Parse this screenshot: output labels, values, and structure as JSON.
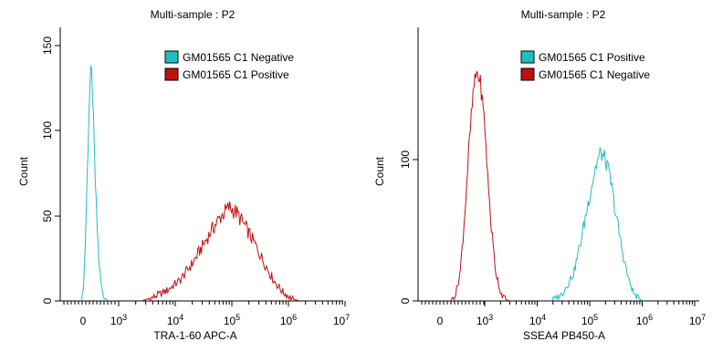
{
  "chart_data": [
    {
      "type": "line",
      "title": "Multi-sample : P2",
      "xlabel": "TRA-1-60 APC-A",
      "ylabel": "Count",
      "ylim": [
        0,
        160
      ],
      "y_ticks": [
        "0",
        "50",
        "100",
        "150"
      ],
      "x_ticks": [
        {
          "base": "0",
          "exp": ""
        },
        {
          "base": "10",
          "exp": "3"
        },
        {
          "base": "10",
          "exp": "4"
        },
        {
          "base": "10",
          "exp": "5"
        },
        {
          "base": "10",
          "exp": "6"
        },
        {
          "base": "10",
          "exp": "7"
        }
      ],
      "legend_position": "top-right",
      "series": [
        {
          "name": "GM01565 C1 Negative",
          "color": "#1fbfbf",
          "points": [
            [
              -40,
              0
            ],
            [
              0,
              5
            ],
            [
              50,
              25
            ],
            [
              100,
              60
            ],
            [
              150,
              100
            ],
            [
              180,
              120
            ],
            [
              210,
              132
            ],
            [
              230,
              134
            ],
            [
              250,
              131
            ],
            [
              280,
              115
            ],
            [
              320,
              85
            ],
            [
              380,
              50
            ],
            [
              450,
              22
            ],
            [
              520,
              8
            ],
            [
              600,
              2
            ],
            [
              700,
              0
            ]
          ]
        },
        {
          "name": "GM01565 C1 Positive",
          "color": "#bf1010",
          "points": [
            [
              2500,
              0
            ],
            [
              4000,
              2
            ],
            [
              7000,
              6
            ],
            [
              12000,
              12
            ],
            [
              20000,
              22
            ],
            [
              30000,
              32
            ],
            [
              45000,
              42
            ],
            [
              65000,
              50
            ],
            [
              90000,
              55
            ],
            [
              120000,
              52
            ],
            [
              170000,
              44
            ],
            [
              250000,
              34
            ],
            [
              380000,
              22
            ],
            [
              550000,
              12
            ],
            [
              800000,
              5
            ],
            [
              1200000,
              1
            ],
            [
              1600000,
              0
            ]
          ]
        }
      ]
    },
    {
      "type": "line",
      "title": "Multi-sample : P2",
      "xlabel": "SSEA4 PB450-A",
      "ylabel": "Count",
      "ylim": [
        0,
        180
      ],
      "y_ticks": [
        "0",
        "100"
      ],
      "x_ticks": [
        {
          "base": "0",
          "exp": ""
        },
        {
          "base": "10",
          "exp": "3"
        },
        {
          "base": "10",
          "exp": "4"
        },
        {
          "base": "10",
          "exp": "5"
        },
        {
          "base": "10",
          "exp": "6"
        },
        {
          "base": "10",
          "exp": "7"
        }
      ],
      "legend_position": "top-right",
      "series": [
        {
          "name": "GM01565 C1 Positive",
          "color": "#1fbfbf",
          "points": [
            [
              18000,
              0
            ],
            [
              30000,
              5
            ],
            [
              50000,
              20
            ],
            [
              70000,
              45
            ],
            [
              100000,
              75
            ],
            [
              130000,
              95
            ],
            [
              160000,
              105
            ],
            [
              200000,
              100
            ],
            [
              250000,
              85
            ],
            [
              320000,
              60
            ],
            [
              420000,
              35
            ],
            [
              550000,
              15
            ],
            [
              700000,
              5
            ],
            [
              900000,
              1
            ],
            [
              1100000,
              0
            ]
          ]
        },
        {
          "name": "GM01565 C1 Negative",
          "color": "#bf1010",
          "points": [
            [
              250,
              0
            ],
            [
              350,
              5
            ],
            [
              450,
              20
            ],
            [
              550,
              60
            ],
            [
              650,
              110
            ],
            [
              750,
              150
            ],
            [
              820,
              162
            ],
            [
              900,
              155
            ],
            [
              1000,
              125
            ],
            [
              1150,
              85
            ],
            [
              1350,
              50
            ],
            [
              1600,
              22
            ],
            [
              2000,
              6
            ],
            [
              2500,
              1
            ],
            [
              3000,
              0
            ]
          ]
        }
      ]
    }
  ]
}
